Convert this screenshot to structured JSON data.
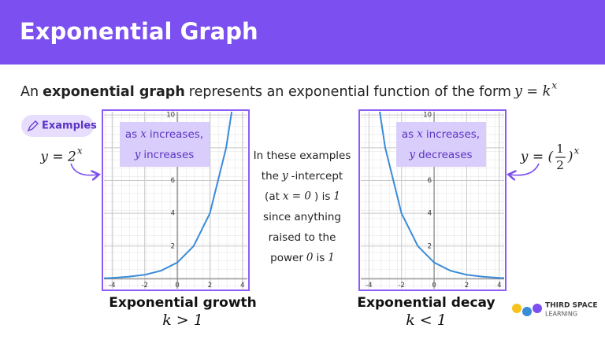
{
  "header": {
    "title": "Exponential Graph"
  },
  "intro": [
    {
      "text": "An"
    },
    {
      "text": "exponential graph",
      "bold": true
    },
    {
      "text": "represents an exponential function of the form"
    },
    {
      "text": "y = k",
      "math": true
    },
    {
      "text": "x",
      "math": true,
      "sup": true
    }
  ],
  "examples_label": "Examples",
  "note": [
    [
      {
        "text": "In these examples"
      }
    ],
    [
      {
        "text": "the"
      },
      {
        "text": "y",
        "math": true
      },
      {
        "text": "-intercept"
      }
    ],
    [
      {
        "text": "(at"
      },
      {
        "text": "x = 0",
        "math": true
      },
      {
        "text": ") is"
      },
      {
        "text": "1",
        "math": true
      }
    ],
    [
      {
        "text": "since anything"
      }
    ],
    [
      {
        "text": "raised to the"
      }
    ],
    [
      {
        "text": "power"
      },
      {
        "text": "0",
        "math": true
      },
      {
        "text": "is"
      },
      {
        "text": "1",
        "math": true
      }
    ]
  ],
  "graphs": [
    {
      "formula": [
        {
          "text": "y = 2",
          "math": true
        },
        {
          "text": "x",
          "math": true,
          "sup": true
        }
      ],
      "caption": [
        [
          {
            "text": "as"
          },
          {
            "text": "x",
            "math": true
          },
          {
            "text": "increases,"
          }
        ],
        [
          {
            "text": "y",
            "math": true
          },
          {
            "text": "increases"
          }
        ]
      ],
      "name": "Exponential growth",
      "condition": "k > 1",
      "xlim": [
        -4.5,
        4.3
      ],
      "ylim": [
        -0.6,
        10.2
      ],
      "xticks": [
        -4,
        -2,
        0,
        2,
        4
      ],
      "yticks": [
        2,
        4,
        6,
        8,
        10
      ],
      "color": "#3a8bd8",
      "curve": {
        "x": [
          -4.5,
          -4,
          -3,
          -2,
          -1,
          0,
          1,
          2,
          3,
          3.4
        ],
        "y": [
          0.04,
          0.06,
          0.13,
          0.25,
          0.5,
          1,
          2,
          4,
          8,
          10.6
        ]
      }
    },
    {
      "formula": [
        {
          "text": "y = (",
          "math": true
        },
        {
          "frac": [
            "1",
            "2"
          ]
        },
        {
          "text": ")",
          "math": true
        },
        {
          "text": "x",
          "math": true,
          "sup": true
        }
      ],
      "caption": [
        [
          {
            "text": "as"
          },
          {
            "text": "x",
            "math": true
          },
          {
            "text": "increases,"
          }
        ],
        [
          {
            "text": "y",
            "math": true
          },
          {
            "text": "decreases"
          }
        ]
      ],
      "name": "Exponential decay",
      "condition": "k < 1",
      "xlim": [
        -4.5,
        4.3
      ],
      "ylim": [
        -0.6,
        10.2
      ],
      "xticks": [
        -4,
        -2,
        0,
        2,
        4
      ],
      "yticks": [
        2,
        4,
        6,
        8,
        10
      ],
      "color": "#3a8bd8",
      "curve": {
        "x": [
          -3.4,
          -3,
          -2,
          -1,
          0,
          1,
          2,
          3,
          4,
          4.3
        ],
        "y": [
          10.6,
          8,
          4,
          2,
          1,
          0.5,
          0.25,
          0.13,
          0.06,
          0.05
        ]
      }
    }
  ],
  "logo": {
    "line1": "THIRD SPACE",
    "line2": "LEARNING"
  }
}
